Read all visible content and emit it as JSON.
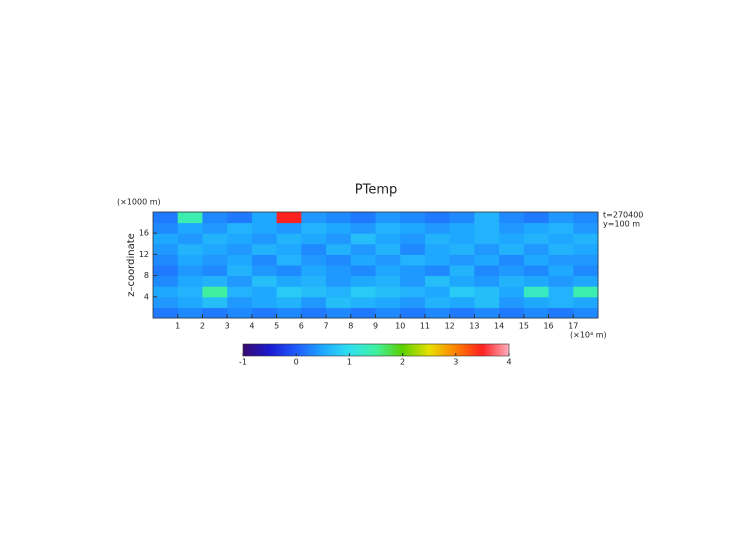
{
  "chart_data": {
    "type": "heatmap",
    "title": "PTemp",
    "ylabel": "z–coordinate",
    "yunit": "(×1000 m)",
    "xunit": "(×10⁴ m)",
    "annotations": [
      "t=270400",
      "y=100 m"
    ],
    "xlim": [
      0,
      18
    ],
    "ylim": [
      0,
      20
    ],
    "xticks": [
      1,
      2,
      3,
      4,
      5,
      6,
      7,
      8,
      9,
      10,
      11,
      12,
      13,
      14,
      15,
      16,
      17
    ],
    "yticks": [
      4,
      8,
      12,
      16
    ],
    "xbins": [
      0,
      1,
      2,
      3,
      4,
      5,
      6,
      7,
      8,
      9,
      10,
      11,
      12,
      13,
      14,
      15,
      16,
      17,
      18
    ],
    "ybins": [
      0,
      2,
      4,
      6,
      8,
      10,
      12,
      14,
      16,
      18,
      20
    ],
    "values": [
      [
        0.2,
        0.3,
        0.2,
        0.3,
        0.2,
        0.3,
        0.2,
        0.3,
        0.2,
        0.3,
        0.2,
        0.3,
        0.2,
        0.3,
        0.2,
        0.3,
        0.2,
        0.3
      ],
      [
        0.4,
        0.5,
        0.7,
        0.4,
        0.5,
        0.6,
        0.4,
        0.7,
        0.6,
        0.5,
        0.4,
        0.6,
        0.5,
        0.7,
        0.4,
        0.5,
        0.6,
        0.5
      ],
      [
        0.5,
        0.6,
        1.5,
        0.6,
        0.5,
        0.8,
        0.7,
        0.6,
        0.8,
        0.7,
        0.6,
        0.5,
        0.8,
        0.7,
        0.5,
        1.3,
        0.6,
        1.4
      ],
      [
        0.3,
        0.5,
        0.6,
        0.4,
        0.7,
        0.5,
        0.6,
        0.4,
        0.5,
        0.6,
        0.4,
        0.7,
        0.5,
        0.4,
        0.6,
        0.5,
        0.4,
        0.5
      ],
      [
        0.2,
        0.4,
        0.3,
        0.6,
        0.4,
        0.3,
        0.5,
        0.4,
        0.3,
        0.5,
        0.4,
        0.3,
        0.6,
        0.3,
        0.4,
        0.3,
        0.5,
        0.3
      ],
      [
        0.3,
        0.5,
        0.4,
        0.5,
        0.3,
        0.6,
        0.4,
        0.3,
        0.5,
        0.4,
        0.6,
        0.5,
        0.4,
        0.5,
        0.3,
        0.5,
        0.4,
        0.4
      ],
      [
        0.4,
        0.6,
        0.5,
        0.4,
        0.6,
        0.5,
        0.3,
        0.6,
        0.4,
        0.6,
        0.3,
        0.5,
        0.6,
        0.4,
        0.6,
        0.4,
        0.6,
        0.5
      ],
      [
        0.5,
        0.4,
        0.6,
        0.5,
        0.4,
        0.6,
        0.5,
        0.4,
        0.7,
        0.5,
        0.4,
        0.6,
        0.5,
        0.6,
        0.5,
        0.6,
        0.5,
        0.6
      ],
      [
        0.3,
        0.5,
        0.4,
        0.6,
        0.5,
        0.4,
        0.6,
        0.5,
        0.4,
        0.6,
        0.5,
        0.4,
        0.5,
        0.6,
        0.4,
        0.5,
        0.6,
        0.4
      ],
      [
        0.2,
        1.4,
        0.3,
        0.2,
        0.5,
        3.5,
        0.4,
        0.3,
        0.2,
        0.4,
        0.3,
        0.2,
        0.3,
        0.6,
        0.3,
        0.2,
        0.4,
        0.3
      ]
    ],
    "clim": [
      -1,
      4
    ],
    "cbar_ticks": [
      -1,
      0,
      1,
      2,
      3,
      4
    ],
    "colormap": [
      "#3a0a6e",
      "#1a1ad0",
      "#1f5bff",
      "#1fa8ff",
      "#2ee0f0",
      "#40f0a0",
      "#5cd000",
      "#e8e000",
      "#ff8000",
      "#ff2020",
      "#ffb0c0"
    ]
  }
}
